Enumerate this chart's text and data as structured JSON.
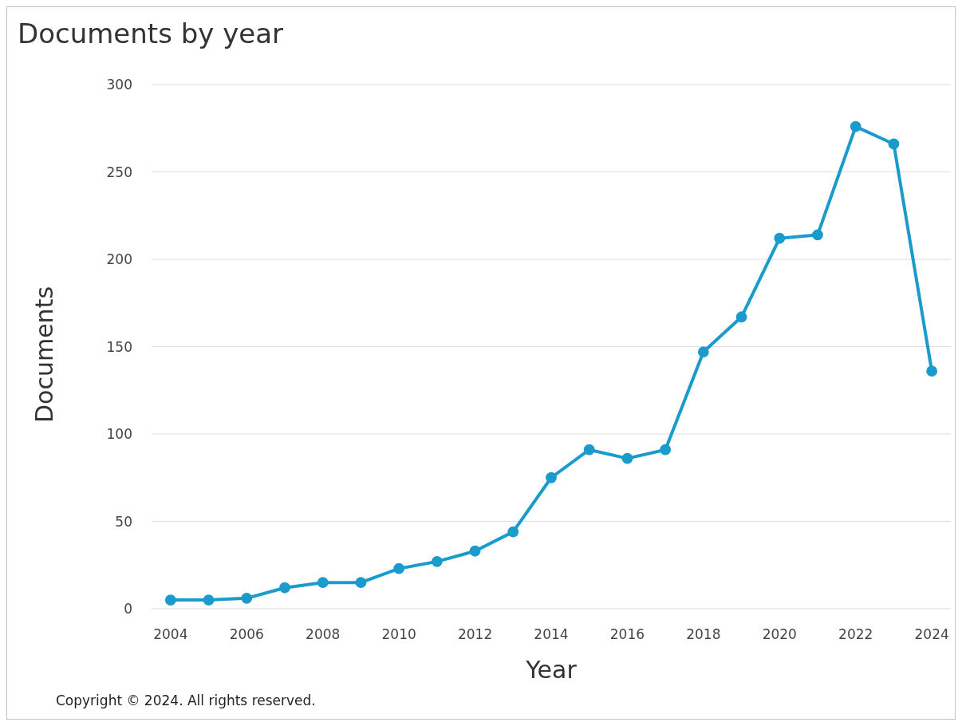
{
  "chart_data": {
    "type": "line",
    "title": "Documents by year",
    "xlabel": "Year",
    "ylabel": "Documents",
    "x": [
      2004,
      2005,
      2006,
      2007,
      2008,
      2009,
      2010,
      2011,
      2012,
      2013,
      2014,
      2015,
      2016,
      2017,
      2018,
      2019,
      2020,
      2021,
      2022,
      2023,
      2024
    ],
    "series": [
      {
        "color": "#1b9bcb",
        "values": [
          5,
          5,
          6,
          12,
          15,
          15,
          23,
          27,
          33,
          44,
          75,
          91,
          86,
          91,
          147,
          167,
          212,
          214,
          276,
          266,
          136
        ]
      }
    ],
    "xlim": [
      2003.5,
      2024.5
    ],
    "xticks": [
      2004,
      2006,
      2008,
      2010,
      2012,
      2014,
      2016,
      2018,
      2020,
      2022,
      2024
    ],
    "ylim": [
      0,
      300
    ],
    "yticks": [
      0,
      50,
      100,
      150,
      200,
      250,
      300
    ],
    "grid": "y",
    "marker": "circle",
    "line_style": "solid",
    "annotations": [
      "Copyright © 2024. All rights reserved."
    ]
  }
}
